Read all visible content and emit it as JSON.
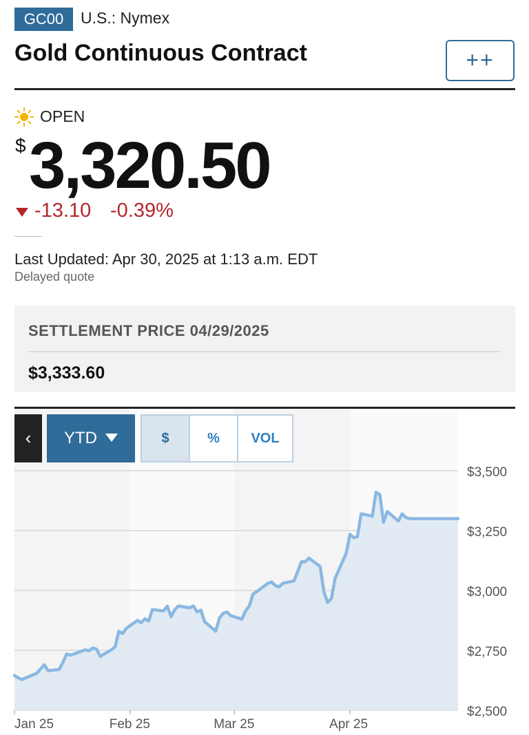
{
  "header": {
    "ticker": "GC00",
    "exchange": "U.S.: Nymex",
    "title": "Gold Continuous Contract",
    "watch_label": "++",
    "watch_icon": "plus-plus-icon"
  },
  "quote": {
    "status": "OPEN",
    "status_icon": "sun-icon",
    "currency_symbol": "$",
    "price": "3,320.50",
    "change_abs": "-13.10",
    "change_pct": "-0.39%",
    "change_icon": "down-triangle-icon",
    "change_color": "#b3272d",
    "last_updated": "Last Updated: Apr 30, 2025 at 1:13 a.m. EDT",
    "delayed": "Delayed quote"
  },
  "settlement": {
    "label": "SETTLEMENT PRICE 04/29/2025",
    "value": "$3,333.60"
  },
  "chart_controls": {
    "back_label": "‹",
    "range_label": "YTD",
    "modes": [
      "$",
      "%",
      "VOL"
    ],
    "active_mode": "$"
  },
  "chart_data": {
    "type": "area",
    "title": "",
    "xlabel": "",
    "ylabel": "",
    "ylim": [
      2500,
      3500
    ],
    "y_ticks": [
      3500,
      3250,
      3000,
      2750,
      2500
    ],
    "y_tick_labels": [
      "$3,500",
      "$3,250",
      "$3,000",
      "$2,750",
      "$2,500"
    ],
    "x_tick_labels": [
      "Jan 25",
      "Feb 25",
      "Mar 25",
      "Apr 25"
    ],
    "x_tick_dates": [
      "2025-01-01",
      "2025-02-01",
      "2025-03-01",
      "2025-04-01"
    ],
    "grid": true,
    "line_color": "#8ab8e2",
    "fill_color": "#dfe9f2",
    "series": [
      {
        "x": [
          "2025-01-01",
          "2025-01-02",
          "2025-01-03",
          "2025-01-06",
          "2025-01-07",
          "2025-01-08",
          "2025-01-09",
          "2025-01-10",
          "2025-01-13",
          "2025-01-14",
          "2025-01-15",
          "2025-01-16",
          "2025-01-17",
          "2025-01-20",
          "2025-01-21",
          "2025-01-22",
          "2025-01-23",
          "2025-01-24",
          "2025-01-27",
          "2025-01-28",
          "2025-01-29",
          "2025-01-30",
          "2025-01-31",
          "2025-02-03",
          "2025-02-04",
          "2025-02-05",
          "2025-02-06",
          "2025-02-07",
          "2025-02-10",
          "2025-02-11",
          "2025-02-12",
          "2025-02-13",
          "2025-02-14",
          "2025-02-17",
          "2025-02-18",
          "2025-02-19",
          "2025-02-20",
          "2025-02-21",
          "2025-02-24",
          "2025-02-25",
          "2025-02-26",
          "2025-02-27",
          "2025-02-28",
          "2025-03-03",
          "2025-03-04",
          "2025-03-05",
          "2025-03-06",
          "2025-03-07",
          "2025-03-10",
          "2025-03-11",
          "2025-03-12",
          "2025-03-13",
          "2025-03-14",
          "2025-03-17",
          "2025-03-18",
          "2025-03-19",
          "2025-03-20",
          "2025-03-21",
          "2025-03-24",
          "2025-03-25",
          "2025-03-26",
          "2025-03-27",
          "2025-03-28",
          "2025-03-31",
          "2025-04-01",
          "2025-04-02",
          "2025-04-03",
          "2025-04-04",
          "2025-04-07",
          "2025-04-08",
          "2025-04-09",
          "2025-04-10",
          "2025-04-11",
          "2025-04-14",
          "2025-04-15",
          "2025-04-16",
          "2025-04-17",
          "2025-04-21",
          "2025-04-22",
          "2025-04-23",
          "2025-04-24",
          "2025-04-25",
          "2025-04-28",
          "2025-04-29",
          "2025-04-30"
        ],
        "values": [
          2645,
          2635,
          2628,
          2648,
          2655,
          2672,
          2690,
          2665,
          2670,
          2700,
          2735,
          2730,
          2735,
          2752,
          2748,
          2760,
          2755,
          2725,
          2752,
          2765,
          2830,
          2820,
          2842,
          2875,
          2865,
          2882,
          2872,
          2920,
          2915,
          2935,
          2890,
          2920,
          2935,
          2928,
          2935,
          2910,
          2918,
          2870,
          2830,
          2885,
          2905,
          2910,
          2895,
          2880,
          2915,
          2935,
          2985,
          2995,
          3030,
          3035,
          3020,
          3015,
          3030,
          3040,
          3080,
          3120,
          3120,
          3135,
          3100,
          2995,
          2950,
          2965,
          3050,
          3155,
          3235,
          3220,
          3225,
          3320,
          3310,
          3410,
          3400,
          3285,
          3330,
          3290,
          3320,
          3305,
          3300,
          3300,
          3300,
          3300,
          3300,
          3300,
          3300,
          3300,
          3300
        ]
      }
    ]
  }
}
